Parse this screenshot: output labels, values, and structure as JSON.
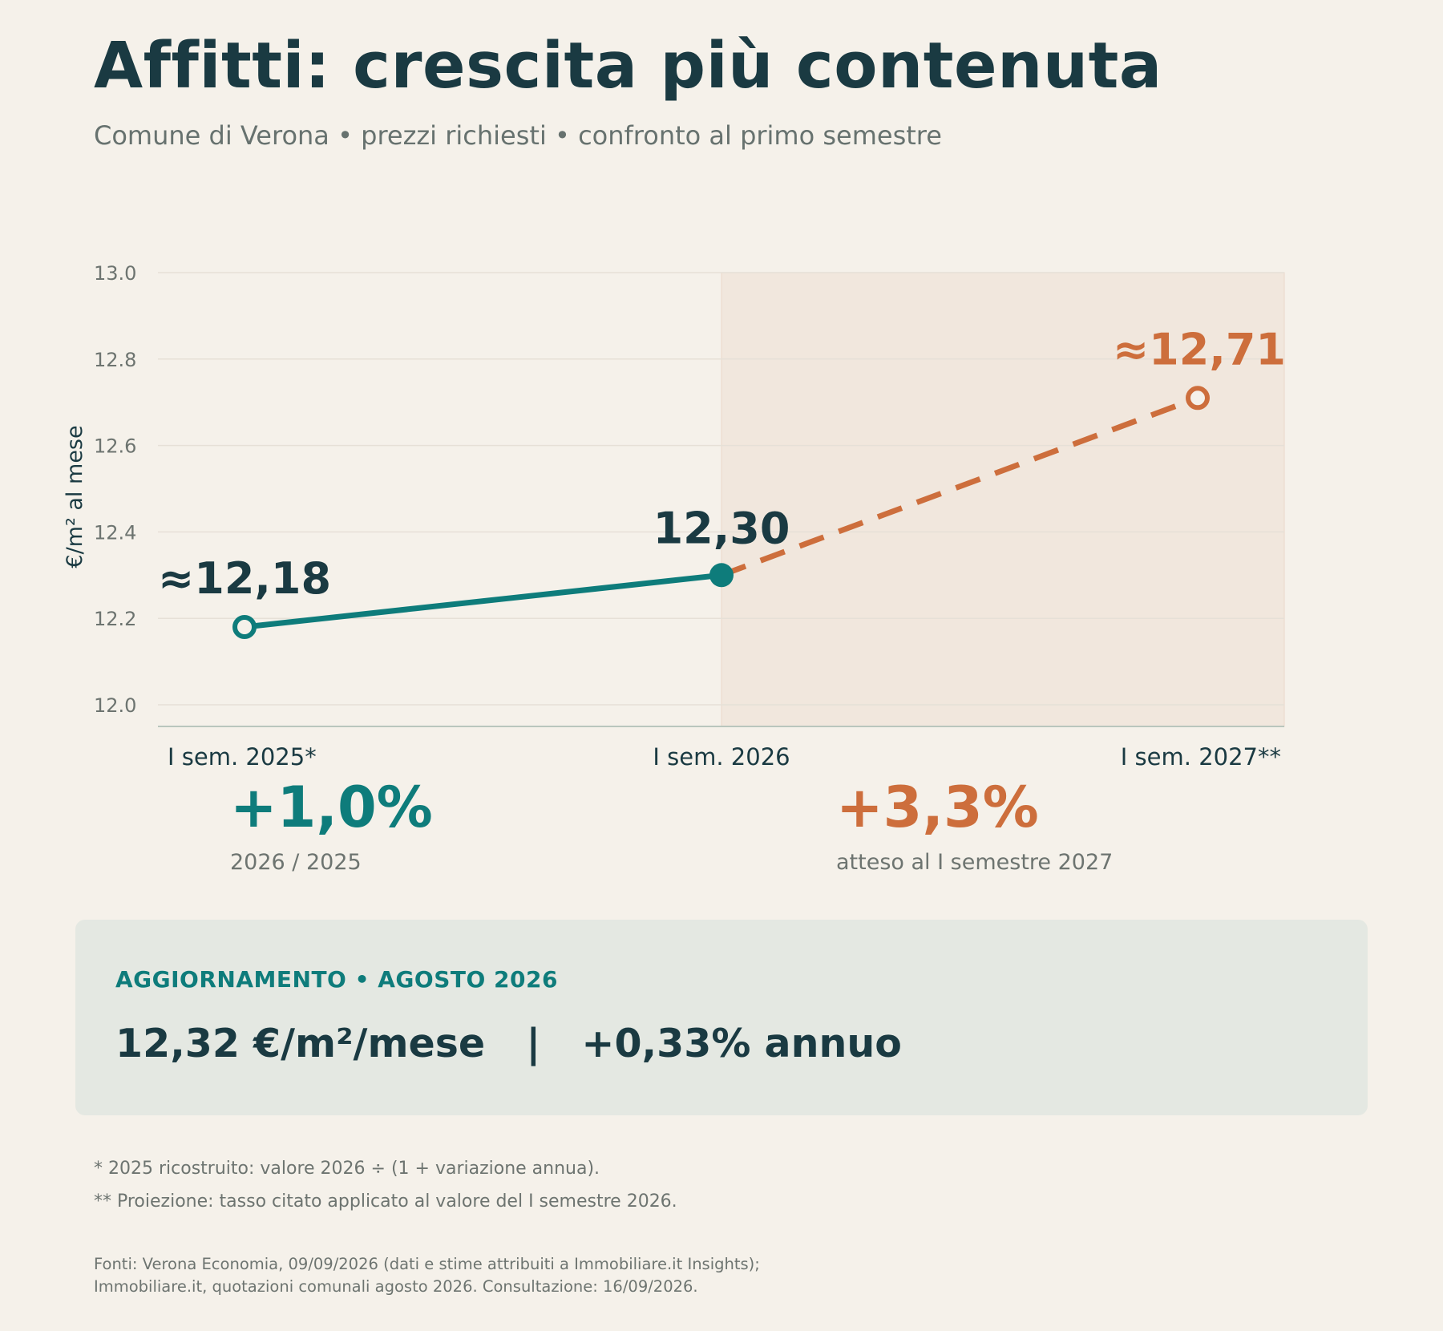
{
  "title": "Affitti: crescita più contenuta",
  "subtitle": "Comune di Verona • prezzi richiesti • confronto al primo semestre",
  "chart_data": {
    "type": "line",
    "ylabel": "€/m² al mese",
    "ylim": [
      11.95,
      13.0
    ],
    "yticks": [
      "12.0",
      "12.2",
      "12.4",
      "12.6",
      "12.8",
      "13.0"
    ],
    "categories": [
      "I sem. 2025*",
      "I sem. 2026",
      "I sem. 2027**"
    ],
    "series": [
      {
        "values": [
          12.18,
          12.3,
          null
        ],
        "style": "solid",
        "color": "#0e7c7b"
      },
      {
        "values": [
          null,
          12.3,
          12.71
        ],
        "style": "dashed",
        "color": "#cd6e3c"
      }
    ],
    "data_labels": [
      "≈12,18",
      "12,30",
      "≈12,71"
    ],
    "projection_shaded_from": "I sem. 2026",
    "grid": true,
    "legend": "none"
  },
  "stats": [
    {
      "value": "+1,0%",
      "label": "2026 / 2025",
      "color": "#0e7c7b"
    },
    {
      "value": "+3,3%",
      "label": "atteso al I semestre 2027",
      "color": "#cd6e3c"
    }
  ],
  "update": {
    "kicker": "AGGIORNAMENTO • AGOSTO 2026",
    "line": "12,32 €/m²/mese   |   +0,33% annuo"
  },
  "notes": [
    "* 2025 ricostruito: valore 2026 ÷ (1 + variazione annua).",
    "** Proiezione: tasso citato applicato al valore del I semestre 2026."
  ],
  "sources": [
    "Fonti: Verona Economia, 09/09/2026 (dati e stime attribuiti a Immobiliare.it Insights);",
    "Immobiliare.it, quotazioni comunali agosto 2026. Consultazione: 16/09/2026."
  ],
  "colors": {
    "background": "#f5f1ea",
    "ink": "#1a3a42",
    "teal": "#0e7c7b",
    "orange": "#cd6e3c",
    "projection_band": "#f1e7dd"
  }
}
